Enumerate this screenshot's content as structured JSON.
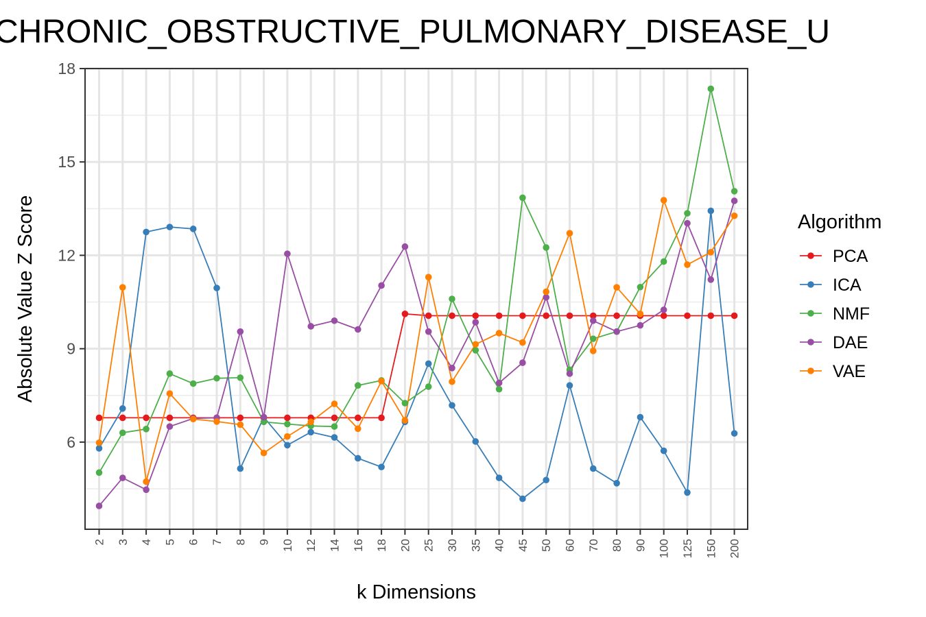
{
  "chart_data": {
    "type": "line",
    "title": "CHRONIC_OBSTRUCTIVE_PULMONARY_DISEASE_U",
    "xlabel": "k Dimensions",
    "ylabel": "Absolute Value Z Score",
    "ylim": [
      3.2,
      18
    ],
    "yticks": [
      6,
      9,
      12,
      15,
      18
    ],
    "grid": true,
    "legend": {
      "title": "Algorithm",
      "position": "right"
    },
    "categories": [
      "2",
      "3",
      "4",
      "5",
      "6",
      "7",
      "8",
      "9",
      "10",
      "12",
      "14",
      "16",
      "18",
      "20",
      "25",
      "30",
      "35",
      "40",
      "45",
      "50",
      "60",
      "70",
      "80",
      "90",
      "100",
      "125",
      "150",
      "200"
    ],
    "series": [
      {
        "name": "PCA",
        "color": "#e41a1c",
        "values": [
          6.78,
          6.78,
          6.78,
          6.78,
          6.78,
          6.78,
          6.78,
          6.78,
          6.78,
          6.78,
          6.78,
          6.78,
          6.78,
          10.12,
          10.06,
          10.06,
          10.06,
          10.06,
          10.06,
          10.06,
          10.06,
          10.06,
          10.06,
          10.06,
          10.06,
          10.06,
          10.06,
          10.06
        ]
      },
      {
        "name": "ICA",
        "color": "#377eb8",
        "values": [
          5.8,
          7.08,
          12.75,
          12.91,
          12.85,
          10.95,
          5.15,
          6.8,
          5.9,
          6.32,
          6.15,
          5.48,
          5.2,
          6.65,
          8.52,
          7.18,
          6.02,
          4.85,
          4.18,
          4.78,
          7.82,
          5.15,
          4.68,
          6.8,
          5.72,
          4.38,
          13.43,
          6.28
        ]
      },
      {
        "name": "NMF",
        "color": "#4daf4a",
        "values": [
          5.02,
          6.3,
          6.42,
          8.2,
          7.88,
          8.05,
          8.07,
          6.65,
          6.58,
          6.52,
          6.5,
          7.82,
          7.98,
          7.25,
          7.78,
          10.6,
          8.95,
          7.7,
          13.85,
          12.25,
          8.32,
          9.32,
          9.55,
          10.98,
          11.8,
          13.35,
          17.35,
          14.06
        ]
      },
      {
        "name": "DAE",
        "color": "#984ea3",
        "values": [
          3.95,
          4.85,
          4.47,
          6.5,
          6.76,
          6.78,
          9.55,
          6.8,
          12.05,
          9.72,
          9.9,
          9.62,
          11.03,
          12.28,
          9.55,
          8.38,
          9.85,
          7.9,
          8.55,
          10.65,
          8.2,
          9.9,
          9.55,
          9.75,
          10.25,
          13.03,
          11.22,
          13.75
        ]
      },
      {
        "name": "VAE",
        "color": "#ff7f00",
        "values": [
          5.98,
          10.97,
          4.73,
          7.56,
          6.74,
          6.66,
          6.56,
          5.65,
          6.18,
          6.65,
          7.23,
          6.43,
          7.96,
          6.7,
          11.3,
          7.94,
          9.14,
          9.5,
          9.2,
          10.83,
          12.71,
          8.93,
          10.97,
          10.12,
          13.77,
          11.7,
          12.1,
          13.27
        ]
      }
    ]
  }
}
